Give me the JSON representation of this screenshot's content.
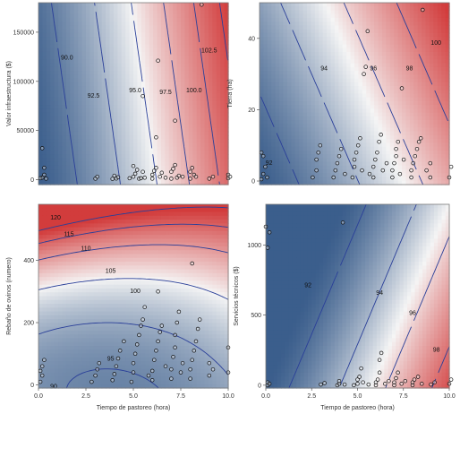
{
  "chart_data": [
    {
      "type": "contour",
      "xlabel": "",
      "ylabel": "Valor infraestructura ($)",
      "xlim": [
        0,
        10
      ],
      "ylim": [
        -5000,
        180000
      ],
      "xticks": [],
      "xtick_labels": [],
      "yticks": [
        0,
        50000,
        100000,
        150000
      ],
      "ytick_labels": [
        "0",
        "50000",
        "100000",
        "150000"
      ],
      "contour_levels": [
        90.0,
        92.5,
        95.0,
        97.5,
        100.0,
        102.5
      ],
      "contour_labels": [
        "90.0",
        "92.5",
        "95.0",
        "97.5",
        "100.0",
        "102.5"
      ],
      "colors": {
        "low": "#3b5e8c",
        "mid": "#f5f5f5",
        "high": "#d23c3c",
        "line": "#2a3f99"
      },
      "points": [
        [
          0.2,
          2000
        ],
        [
          0.3,
          12000
        ],
        [
          0.3,
          5000
        ],
        [
          0.4,
          1000
        ],
        [
          0.2,
          32000
        ],
        [
          0.1,
          1500
        ],
        [
          3,
          1000
        ],
        [
          3.1,
          3000
        ],
        [
          3.9,
          800
        ],
        [
          4,
          4000
        ],
        [
          4.1,
          1200
        ],
        [
          4.2,
          2500
        ],
        [
          4.8,
          1500
        ],
        [
          5,
          3000
        ],
        [
          5,
          14000
        ],
        [
          5.1,
          6000
        ],
        [
          5.2,
          10000
        ],
        [
          5.3,
          1000
        ],
        [
          5.4,
          1500
        ],
        [
          5.5,
          8000
        ],
        [
          5.5,
          85000
        ],
        [
          5.6,
          2000
        ],
        [
          6,
          1000
        ],
        [
          6,
          5000
        ],
        [
          6.1,
          9000
        ],
        [
          6.2,
          12000
        ],
        [
          6.2,
          43000
        ],
        [
          6.3,
          121000
        ],
        [
          6.4,
          3000
        ],
        [
          6.5,
          7000
        ],
        [
          6.7,
          2000
        ],
        [
          7,
          1000
        ],
        [
          7,
          8000
        ],
        [
          7.1,
          11000
        ],
        [
          7.2,
          60000
        ],
        [
          7.2,
          15000
        ],
        [
          7.3,
          2000
        ],
        [
          7.4,
          4000
        ],
        [
          7.6,
          3000
        ],
        [
          8,
          1000
        ],
        [
          8,
          8000
        ],
        [
          8.1,
          12000
        ],
        [
          8.2,
          5000
        ],
        [
          8.3,
          3000
        ],
        [
          8.6,
          178000
        ],
        [
          9,
          1000
        ],
        [
          9.2,
          3000
        ],
        [
          10,
          1500
        ],
        [
          10,
          5000
        ],
        [
          10.1,
          3000
        ]
      ]
    },
    {
      "type": "contour",
      "xlabel": "",
      "ylabel": "Tierra (ha)",
      "xlim": [
        0,
        10
      ],
      "ylim": [
        -1,
        50
      ],
      "xticks": [],
      "xtick_labels": [],
      "yticks": [
        0,
        20,
        40
      ],
      "ytick_labels": [
        "0",
        "20",
        "40"
      ],
      "contour_levels": [
        92,
        94,
        96,
        98,
        100
      ],
      "contour_labels": [
        "92",
        "94",
        "96",
        "98",
        "100"
      ],
      "colors": {
        "low": "#3b5e8c",
        "mid": "#f5f5f5",
        "high": "#d23c3c",
        "line": "#2a3f99"
      },
      "points": [
        [
          0.1,
          0.5
        ],
        [
          0.2,
          2
        ],
        [
          0.3,
          4
        ],
        [
          0.2,
          7
        ],
        [
          0.1,
          8
        ],
        [
          0.4,
          1
        ],
        [
          2.8,
          1
        ],
        [
          3,
          3
        ],
        [
          3,
          6
        ],
        [
          3.1,
          8
        ],
        [
          3.2,
          10
        ],
        [
          3.9,
          1
        ],
        [
          4,
          3
        ],
        [
          4.1,
          5
        ],
        [
          4.2,
          7
        ],
        [
          4.3,
          9
        ],
        [
          4.5,
          2
        ],
        [
          4.9,
          1
        ],
        [
          5,
          4
        ],
        [
          5,
          6
        ],
        [
          5.1,
          8
        ],
        [
          5.2,
          10
        ],
        [
          5.3,
          12
        ],
        [
          5.4,
          3
        ],
        [
          5.5,
          30
        ],
        [
          5.6,
          32
        ],
        [
          5.7,
          42
        ],
        [
          5.8,
          2
        ],
        [
          6,
          1
        ],
        [
          6,
          4
        ],
        [
          6.1,
          6
        ],
        [
          6.2,
          8
        ],
        [
          6.3,
          11
        ],
        [
          6.4,
          13
        ],
        [
          6.5,
          3
        ],
        [
          6.7,
          5
        ],
        [
          7,
          1
        ],
        [
          7,
          3
        ],
        [
          7.1,
          5
        ],
        [
          7.2,
          7
        ],
        [
          7.2,
          9
        ],
        [
          7.3,
          11
        ],
        [
          7.4,
          2
        ],
        [
          7.5,
          26
        ],
        [
          7.6,
          6
        ],
        [
          8,
          1
        ],
        [
          8,
          3
        ],
        [
          8.1,
          5
        ],
        [
          8.2,
          7
        ],
        [
          8.3,
          9
        ],
        [
          8.4,
          11
        ],
        [
          8.5,
          12
        ],
        [
          8.6,
          48
        ],
        [
          8.8,
          3
        ],
        [
          9,
          1
        ],
        [
          9,
          5
        ],
        [
          10,
          1
        ],
        [
          10.1,
          4
        ]
      ]
    },
    {
      "type": "contour",
      "xlabel": "Tiempo de pastoreo (hora)",
      "ylabel": "Rebaño de ovinos (numero)",
      "xlim": [
        0,
        10
      ],
      "ylim": [
        -10,
        580
      ],
      "xticks": [
        0,
        2.5,
        5,
        7.5,
        10
      ],
      "xtick_labels": [
        "0.0",
        "2.5",
        "5.0",
        "7.5",
        "10.0"
      ],
      "yticks": [
        0,
        200,
        400
      ],
      "ytick_labels": [
        "0",
        "200",
        "400"
      ],
      "contour_levels": [
        90,
        95,
        100,
        105,
        110,
        115,
        120
      ],
      "contour_labels": [
        "90",
        "95",
        "100",
        "105",
        "110",
        "115",
        "120"
      ],
      "colors": {
        "low": "#3b5e8c",
        "mid": "#f5f5f5",
        "high": "#d23c3c",
        "line": "#2a3f99"
      },
      "points": [
        [
          0.1,
          10
        ],
        [
          0.2,
          30
        ],
        [
          0.2,
          60
        ],
        [
          0.3,
          80
        ],
        [
          0.1,
          45
        ],
        [
          2.8,
          10
        ],
        [
          3,
          30
        ],
        [
          3.1,
          50
        ],
        [
          3.2,
          70
        ],
        [
          3.9,
          15
        ],
        [
          4,
          35
        ],
        [
          4.1,
          60
        ],
        [
          4.2,
          85
        ],
        [
          4.3,
          110
        ],
        [
          4.5,
          140
        ],
        [
          4.9,
          10
        ],
        [
          5,
          40
        ],
        [
          5,
          70
        ],
        [
          5.1,
          100
        ],
        [
          5.2,
          130
        ],
        [
          5.3,
          160
        ],
        [
          5.4,
          190
        ],
        [
          5.5,
          210
        ],
        [
          5.6,
          250
        ],
        [
          5.8,
          30
        ],
        [
          6,
          15
        ],
        [
          6,
          45
        ],
        [
          6.1,
          80
        ],
        [
          6.2,
          110
        ],
        [
          6.3,
          140
        ],
        [
          6.3,
          300
        ],
        [
          6.4,
          170
        ],
        [
          6.5,
          190
        ],
        [
          6.7,
          60
        ],
        [
          7,
          20
        ],
        [
          7,
          50
        ],
        [
          7.1,
          90
        ],
        [
          7.2,
          120
        ],
        [
          7.2,
          160
        ],
        [
          7.3,
          200
        ],
        [
          7.4,
          235
        ],
        [
          7.5,
          40
        ],
        [
          7.6,
          70
        ],
        [
          8,
          20
        ],
        [
          8,
          50
        ],
        [
          8.1,
          80
        ],
        [
          8.2,
          110
        ],
        [
          8.3,
          140
        ],
        [
          8.4,
          180
        ],
        [
          8.5,
          210
        ],
        [
          8.1,
          390
        ],
        [
          9,
          30
        ],
        [
          9,
          70
        ],
        [
          9.2,
          50
        ],
        [
          10,
          40
        ],
        [
          10,
          120
        ]
      ]
    },
    {
      "type": "contour",
      "xlabel": "Tiempo de pastoreo (hora)",
      "ylabel": "Servicios técnicos ($)",
      "xlim": [
        0,
        10
      ],
      "ylim": [
        -20,
        1290
      ],
      "xticks": [
        0,
        2.5,
        5,
        7.5,
        10
      ],
      "xtick_labels": [
        "0.0",
        "2.5",
        "5.0",
        "7.5",
        "10.0"
      ],
      "yticks": [
        0,
        500,
        1000
      ],
      "ytick_labels": [
        "0",
        "500",
        "1000"
      ],
      "contour_levels": [
        92,
        94,
        96,
        98
      ],
      "contour_labels": [
        "92",
        "94",
        "96",
        "98"
      ],
      "colors": {
        "low": "#3b5e8c",
        "mid": "#f5f5f5",
        "high": "#d23c3c",
        "line": "#2a3f99"
      },
      "points": [
        [
          0.1,
          0
        ],
        [
          0.1,
          20
        ],
        [
          0.2,
          10
        ],
        [
          0,
          1130
        ],
        [
          0.1,
          980
        ],
        [
          0.2,
          1090
        ],
        [
          3,
          5
        ],
        [
          3.2,
          15
        ],
        [
          3.9,
          0
        ],
        [
          4,
          10
        ],
        [
          4,
          30
        ],
        [
          4.2,
          1160
        ],
        [
          4.3,
          5
        ],
        [
          4.8,
          0
        ],
        [
          5,
          10
        ],
        [
          5,
          40
        ],
        [
          5.1,
          60
        ],
        [
          5.2,
          120
        ],
        [
          5.3,
          20
        ],
        [
          5.6,
          5
        ],
        [
          6,
          0
        ],
        [
          6,
          20
        ],
        [
          6.1,
          40
        ],
        [
          6.2,
          90
        ],
        [
          6.2,
          180
        ],
        [
          6.3,
          230
        ],
        [
          6.5,
          10
        ],
        [
          6.7,
          30
        ],
        [
          7,
          0
        ],
        [
          7,
          20
        ],
        [
          7.1,
          50
        ],
        [
          7.2,
          90
        ],
        [
          7.4,
          10
        ],
        [
          7.6,
          30
        ],
        [
          8,
          0
        ],
        [
          8,
          20
        ],
        [
          8.1,
          40
        ],
        [
          8.3,
          60
        ],
        [
          8.5,
          10
        ],
        [
          9,
          5
        ],
        [
          9.2,
          20
        ],
        [
          10,
          10
        ],
        [
          10.1,
          40
        ]
      ]
    }
  ]
}
